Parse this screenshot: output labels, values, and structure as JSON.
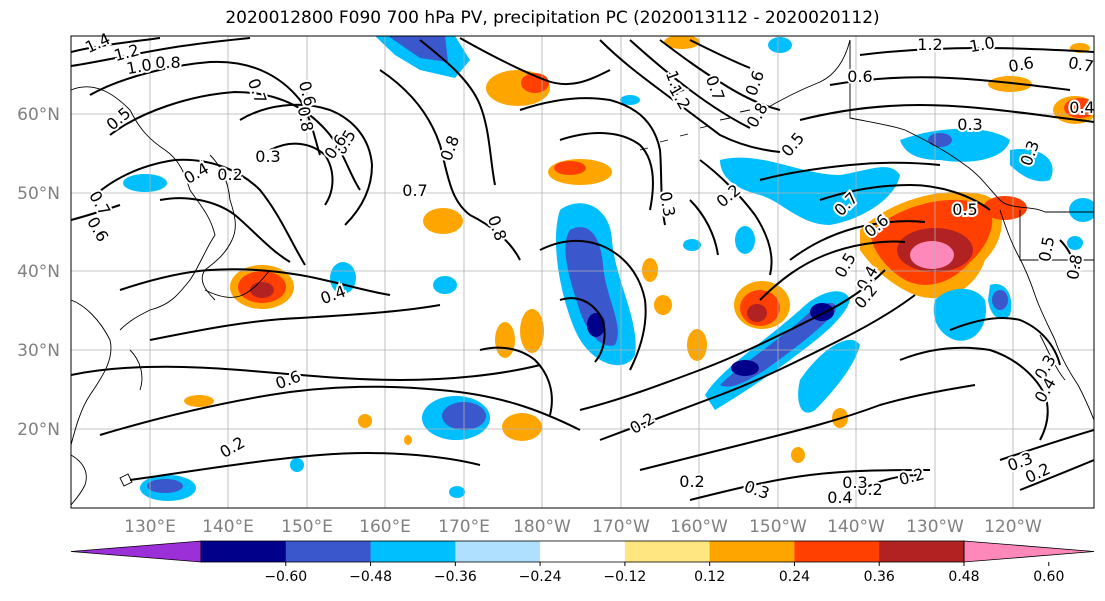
{
  "title": "2020012800 F090 700 hPa PV, precipitation PC (2020013112 - 2020020112)",
  "lat_labels": [
    "60°N",
    "50°N",
    "40°N",
    "30°N",
    "20°N"
  ],
  "lon_labels": [
    "130°E",
    "140°E",
    "150°E",
    "160°E",
    "170°E",
    "180°W",
    "170°W",
    "160°W",
    "150°W",
    "140°W",
    "130°W",
    "120°W"
  ],
  "colorbar": {
    "colors": [
      "#9b30d9",
      "#00008b",
      "#3a57cc",
      "#00bfff",
      "#b0e0ff",
      "#ffffff",
      "#ffe680",
      "#ffa500",
      "#ff4000",
      "#b22222",
      "#ff88bb"
    ],
    "tick_labels": [
      "−0.60",
      "−0.48",
      "−0.36",
      "−0.24",
      "−0.12",
      "0.12",
      "0.24",
      "0.36",
      "0.48",
      "0.60"
    ]
  },
  "contour_labels": [
    "1.4",
    "1.2",
    "1.0",
    "0.8",
    "0.5",
    "0.7",
    "0.6",
    "0.8",
    "0.5",
    "0.6",
    "0.2",
    "0.4",
    "0.3",
    "0.7",
    "0.6",
    "0.7",
    "0.8",
    "0.8",
    "0.4",
    "0.6",
    "0.2",
    "0.2",
    "0.2",
    "0.3",
    "0.2",
    "0.3",
    "0.7",
    "0.6",
    "0.5",
    "0.4",
    "0.2",
    "1.4",
    "1.2",
    "1.2",
    "1.0",
    "0.6",
    "0.7",
    "0.4",
    "0.3",
    "0.3",
    "0.5",
    "0.6",
    "0.5",
    "0.3",
    "0.4",
    "0.2",
    "0.3",
    "0.2",
    "0.4",
    "0.2",
    "0.3",
    "0.5",
    "0.8",
    "0.7",
    "0.6",
    "0.8"
  ]
}
